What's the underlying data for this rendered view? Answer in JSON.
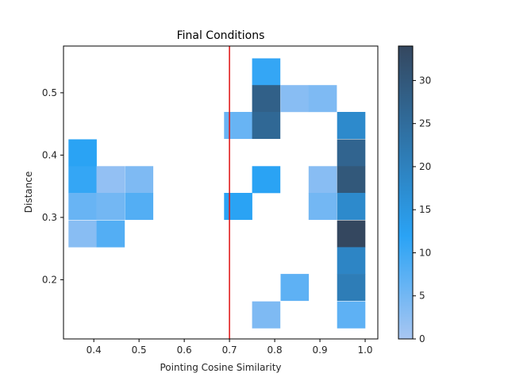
{
  "chart_data": {
    "type": "heatmap",
    "title": "Final Conditions",
    "xlabel": "Pointing Cosine Similarity",
    "ylabel": "Distance",
    "xlim": [
      0.333,
      1.028
    ],
    "ylim": [
      0.105,
      0.575
    ],
    "bin_width": 0.0625,
    "bin_height": 0.0433,
    "x_ticks": [
      0.4,
      0.5,
      0.6,
      0.7,
      0.8,
      0.9,
      1.0
    ],
    "x_tick_labels": [
      "0.4",
      "0.5",
      "0.6",
      "0.7",
      "0.8",
      "0.9",
      "1.0"
    ],
    "y_ticks": [
      0.2,
      0.3,
      0.4,
      0.5
    ],
    "y_tick_labels": [
      "0.2",
      "0.3",
      "0.4",
      "0.5"
    ],
    "reference_line": {
      "x": 0.7,
      "color": "#e01010"
    },
    "colorbar": {
      "min": 0,
      "max": 34,
      "ticks": [
        0,
        5,
        10,
        15,
        20,
        25,
        30
      ],
      "tick_labels": [
        "0",
        "5",
        "10",
        "15",
        "20",
        "25",
        "30"
      ],
      "color_low": "#a8c6f2",
      "color_mid": "#2aa3f5",
      "color_high": "#34475f"
    },
    "cells": [
      {
        "x0": 0.344,
        "y0": 0.382,
        "count": 12
      },
      {
        "x0": 0.344,
        "y0": 0.339,
        "count": 11
      },
      {
        "x0": 0.406,
        "y0": 0.339,
        "count": 2
      },
      {
        "x0": 0.469,
        "y0": 0.339,
        "count": 4
      },
      {
        "x0": 0.344,
        "y0": 0.296,
        "count": 6
      },
      {
        "x0": 0.406,
        "y0": 0.296,
        "count": 5
      },
      {
        "x0": 0.469,
        "y0": 0.296,
        "count": 8
      },
      {
        "x0": 0.344,
        "y0": 0.252,
        "count": 3
      },
      {
        "x0": 0.406,
        "y0": 0.252,
        "count": 8
      },
      {
        "x0": 0.688,
        "y0": 0.426,
        "count": 6
      },
      {
        "x0": 0.688,
        "y0": 0.296,
        "count": 12
      },
      {
        "x0": 0.75,
        "y0": 0.512,
        "count": 11
      },
      {
        "x0": 0.75,
        "y0": 0.469,
        "count": 28
      },
      {
        "x0": 0.75,
        "y0": 0.426,
        "count": 26
      },
      {
        "x0": 0.75,
        "y0": 0.339,
        "count": 12
      },
      {
        "x0": 0.75,
        "y0": 0.122,
        "count": 4
      },
      {
        "x0": 0.813,
        "y0": 0.469,
        "count": 3
      },
      {
        "x0": 0.813,
        "y0": 0.166,
        "count": 7
      },
      {
        "x0": 0.875,
        "y0": 0.469,
        "count": 4
      },
      {
        "x0": 0.875,
        "y0": 0.339,
        "count": 3
      },
      {
        "x0": 0.875,
        "y0": 0.296,
        "count": 5
      },
      {
        "x0": 0.938,
        "y0": 0.426,
        "count": 18
      },
      {
        "x0": 0.938,
        "y0": 0.382,
        "count": 27
      },
      {
        "x0": 0.938,
        "y0": 0.339,
        "count": 30
      },
      {
        "x0": 0.938,
        "y0": 0.296,
        "count": 18
      },
      {
        "x0": 0.938,
        "y0": 0.252,
        "count": 34
      },
      {
        "x0": 0.938,
        "y0": 0.209,
        "count": 19
      },
      {
        "x0": 0.938,
        "y0": 0.166,
        "count": 21
      },
      {
        "x0": 0.938,
        "y0": 0.122,
        "count": 7
      }
    ]
  }
}
